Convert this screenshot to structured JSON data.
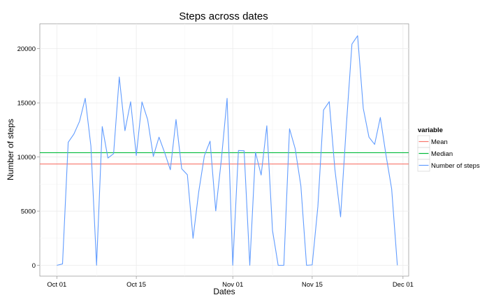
{
  "chart_data": {
    "type": "line",
    "title": "Steps across dates",
    "xlabel": "Dates",
    "ylabel": "Number of steps",
    "x_type": "date",
    "xlim": [
      "2012-09-28",
      "2012-12-02"
    ],
    "ylim": [
      -1000,
      22300
    ],
    "x_ticks": [
      {
        "date": "2012-10-01",
        "label": "Oct 01"
      },
      {
        "date": "2012-10-15",
        "label": "Oct 15"
      },
      {
        "date": "2012-11-01",
        "label": "Nov 01"
      },
      {
        "date": "2012-11-15",
        "label": "Nov 15"
      },
      {
        "date": "2012-12-01",
        "label": "Dec 01"
      }
    ],
    "y_ticks": [
      0,
      5000,
      10000,
      15000,
      20000
    ],
    "grid": true,
    "legend": {
      "title": "variable",
      "position": "right"
    },
    "series": [
      {
        "name": "Mean",
        "color": "#F8766D",
        "kind": "hline",
        "value": 9354
      },
      {
        "name": "Median",
        "color": "#00BA38",
        "kind": "hline",
        "value": 10395
      },
      {
        "name": "Number of steps",
        "color": "#619CFF",
        "kind": "line",
        "points": [
          [
            "2012-10-01",
            0
          ],
          [
            "2012-10-02",
            126
          ],
          [
            "2012-10-03",
            11352
          ],
          [
            "2012-10-04",
            12116
          ],
          [
            "2012-10-05",
            13294
          ],
          [
            "2012-10-06",
            15420
          ],
          [
            "2012-10-07",
            11015
          ],
          [
            "2012-10-08",
            0
          ],
          [
            "2012-10-09",
            12811
          ],
          [
            "2012-10-10",
            9900
          ],
          [
            "2012-10-11",
            10304
          ],
          [
            "2012-10-12",
            17382
          ],
          [
            "2012-10-13",
            12426
          ],
          [
            "2012-10-14",
            15098
          ],
          [
            "2012-10-15",
            10139
          ],
          [
            "2012-10-16",
            15084
          ],
          [
            "2012-10-17",
            13452
          ],
          [
            "2012-10-18",
            10056
          ],
          [
            "2012-10-19",
            11829
          ],
          [
            "2012-10-20",
            10395
          ],
          [
            "2012-10-21",
            8821
          ],
          [
            "2012-10-22",
            13460
          ],
          [
            "2012-10-23",
            8918
          ],
          [
            "2012-10-24",
            8355
          ],
          [
            "2012-10-25",
            2492
          ],
          [
            "2012-10-26",
            6778
          ],
          [
            "2012-10-27",
            10119
          ],
          [
            "2012-10-28",
            11458
          ],
          [
            "2012-10-29",
            5018
          ],
          [
            "2012-10-30",
            9819
          ],
          [
            "2012-10-31",
            15414
          ],
          [
            "2012-11-01",
            0
          ],
          [
            "2012-11-02",
            10600
          ],
          [
            "2012-11-03",
            10571
          ],
          [
            "2012-11-04",
            0
          ],
          [
            "2012-11-05",
            10439
          ],
          [
            "2012-11-06",
            8334
          ],
          [
            "2012-11-07",
            12883
          ],
          [
            "2012-11-08",
            3219
          ],
          [
            "2012-11-09",
            0
          ],
          [
            "2012-11-10",
            0
          ],
          [
            "2012-11-11",
            12608
          ],
          [
            "2012-11-12",
            10765
          ],
          [
            "2012-11-13",
            7336
          ],
          [
            "2012-11-14",
            0
          ],
          [
            "2012-11-15",
            41
          ],
          [
            "2012-11-16",
            5441
          ],
          [
            "2012-11-17",
            14339
          ],
          [
            "2012-11-18",
            15110
          ],
          [
            "2012-11-19",
            8841
          ],
          [
            "2012-11-20",
            4472
          ],
          [
            "2012-11-21",
            12787
          ],
          [
            "2012-11-22",
            20427
          ],
          [
            "2012-11-23",
            21194
          ],
          [
            "2012-11-24",
            14478
          ],
          [
            "2012-11-25",
            11834
          ],
          [
            "2012-11-26",
            11162
          ],
          [
            "2012-11-27",
            13646
          ],
          [
            "2012-11-28",
            10183
          ],
          [
            "2012-11-29",
            7047
          ],
          [
            "2012-11-30",
            0
          ]
        ]
      }
    ]
  }
}
